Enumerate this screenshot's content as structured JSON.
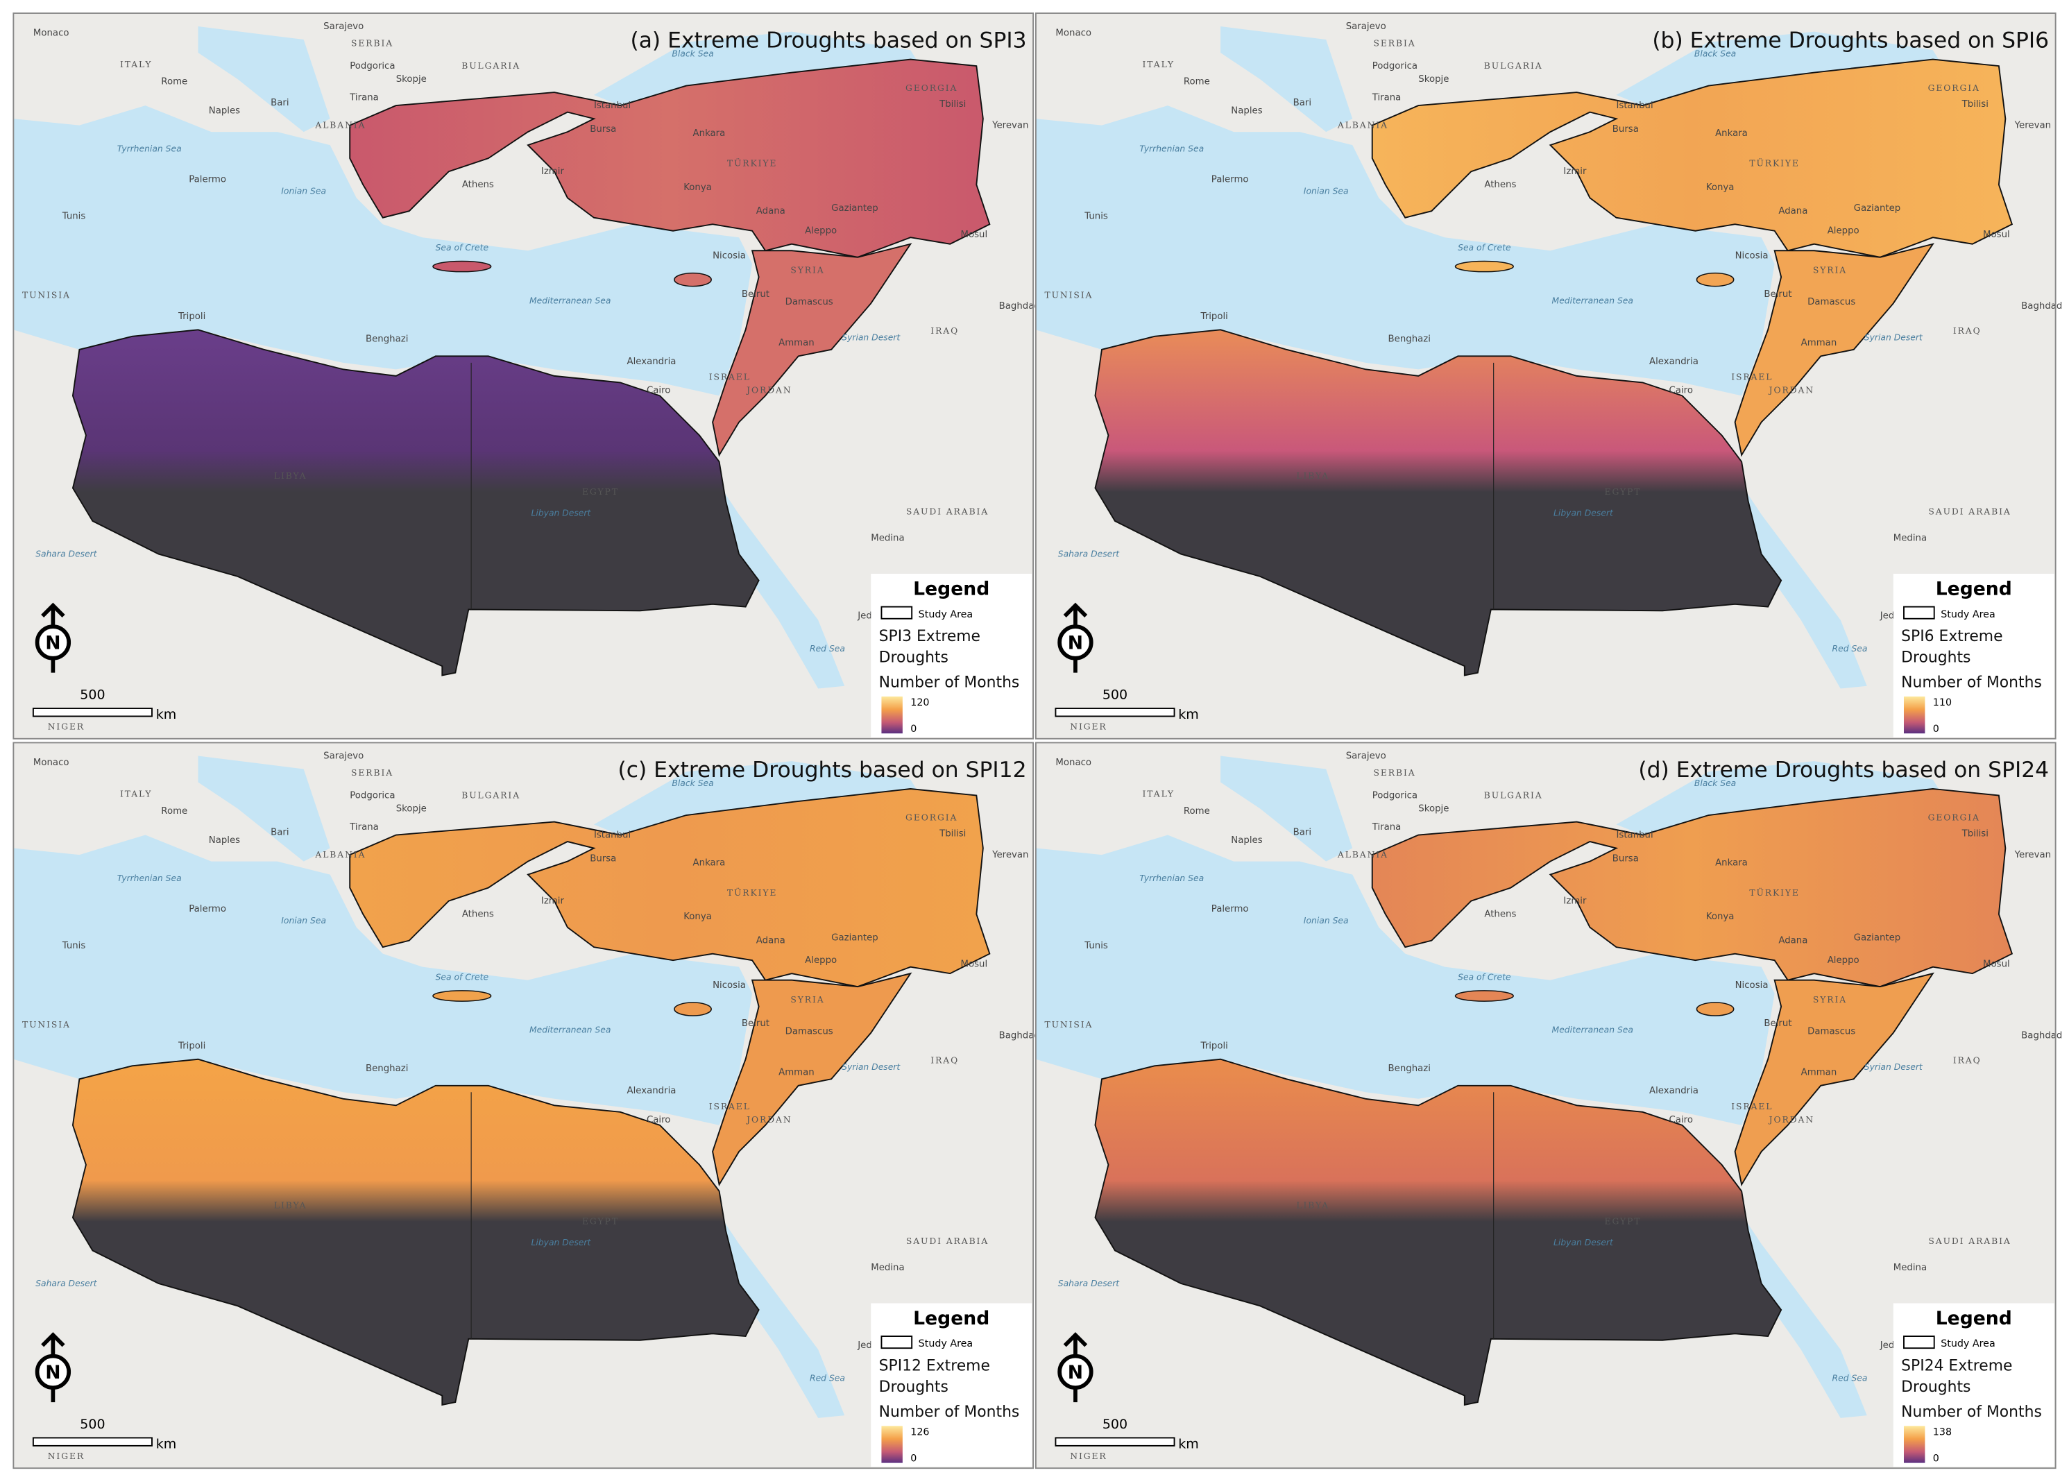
{
  "panels": [
    {
      "title": "(a) Extreme Droughts based on SPI3",
      "layer_lines": [
        "SPI3 Extreme",
        "Droughts"
      ],
      "max": 120,
      "min": 0
    },
    {
      "title": "(b) Extreme Droughts based on SPI6",
      "layer_lines": [
        "SPI6 Extreme",
        "Droughts"
      ],
      "max": 110,
      "min": 0
    },
    {
      "title": "(c) Extreme Droughts based on SPI12",
      "layer_lines": [
        "SPI12 Extreme",
        "Droughts"
      ],
      "max": 126,
      "min": 0
    },
    {
      "title": "(d) Extreme Droughts based on SPI24",
      "layer_lines": [
        "SPI24 Extreme",
        "Droughts"
      ],
      "max": 138,
      "min": 0
    }
  ],
  "legend_heading": "Legend",
  "study_area": "Study Area",
  "field_label": "Number of Months",
  "scale_bar": {
    "distance": "500",
    "unit": "km"
  },
  "north_label": "N",
  "place_labels": [
    "Monaco",
    "Sarajevo",
    "SERBIA",
    "BULGARIA",
    "Podgorica",
    "Skopje",
    "ITALY",
    "Rome",
    "Naples",
    "Bari",
    "Tirana",
    "ALBANIA",
    "Istanbul",
    "Black Sea",
    "GEORGIA",
    "Tbilisi",
    "Yerevan",
    "Bursa",
    "Ankara",
    "TÜRKIYE",
    "Tyrrhenian Sea",
    "Palermo",
    "Ionian Sea",
    "Izmir",
    "Konya",
    "Adana",
    "Gaziantep",
    "Aleppo",
    "Mosul",
    "Tunis",
    "Athens",
    "Sea of Crete",
    "Nicosia",
    "SYRIA",
    "TUNISIA",
    "Mediterranean Sea",
    "Beirut",
    "Damascus",
    "Baghdad",
    "Tripoli",
    "Benghazi",
    "Syrian Desert",
    "IRAQ",
    "Amman",
    "Alexandria",
    "ISRAEL",
    "JORDAN",
    "Cairo",
    "LIBYA",
    "EGYPT",
    "Libyan Desert",
    "SAUDI ARABIA",
    "Medina",
    "Sahara Desert",
    "Jeddah",
    "Red Sea",
    "NIGER"
  ]
}
